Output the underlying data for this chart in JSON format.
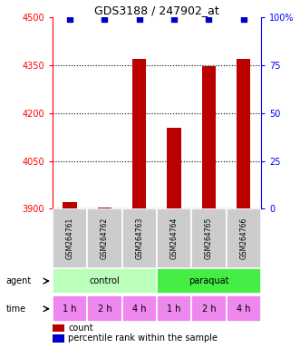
{
  "title": "GDS3188 / 247902_at",
  "categories": [
    "GSM264761",
    "GSM264762",
    "GSM264763",
    "GSM264764",
    "GSM264765",
    "GSM264766"
  ],
  "counts": [
    3920,
    3903,
    4370,
    4155,
    4348,
    4370
  ],
  "percentile_ranks": [
    99,
    99,
    99,
    99,
    99,
    99
  ],
  "ylim_left": [
    3900,
    4500
  ],
  "ylim_right": [
    0,
    100
  ],
  "yticks_left": [
    3900,
    4050,
    4200,
    4350,
    4500
  ],
  "yticks_right": [
    0,
    25,
    50,
    75,
    100
  ],
  "ytick_labels_right": [
    "0",
    "25",
    "50",
    "75",
    "100%"
  ],
  "bar_color": "#bb0000",
  "dot_color": "#0000cc",
  "agent_control": "control",
  "agent_paraquat": "paraquat",
  "time_labels": [
    "1 h",
    "2 h",
    "4 h",
    "1 h",
    "2 h",
    "4 h"
  ],
  "control_color": "#bbffbb",
  "paraquat_color": "#44ee44",
  "time_color": "#ee88ee",
  "sample_bg_color": "#cccccc",
  "legend_count_color": "#bb0000",
  "legend_pct_color": "#0000cc",
  "bar_width": 0.4
}
